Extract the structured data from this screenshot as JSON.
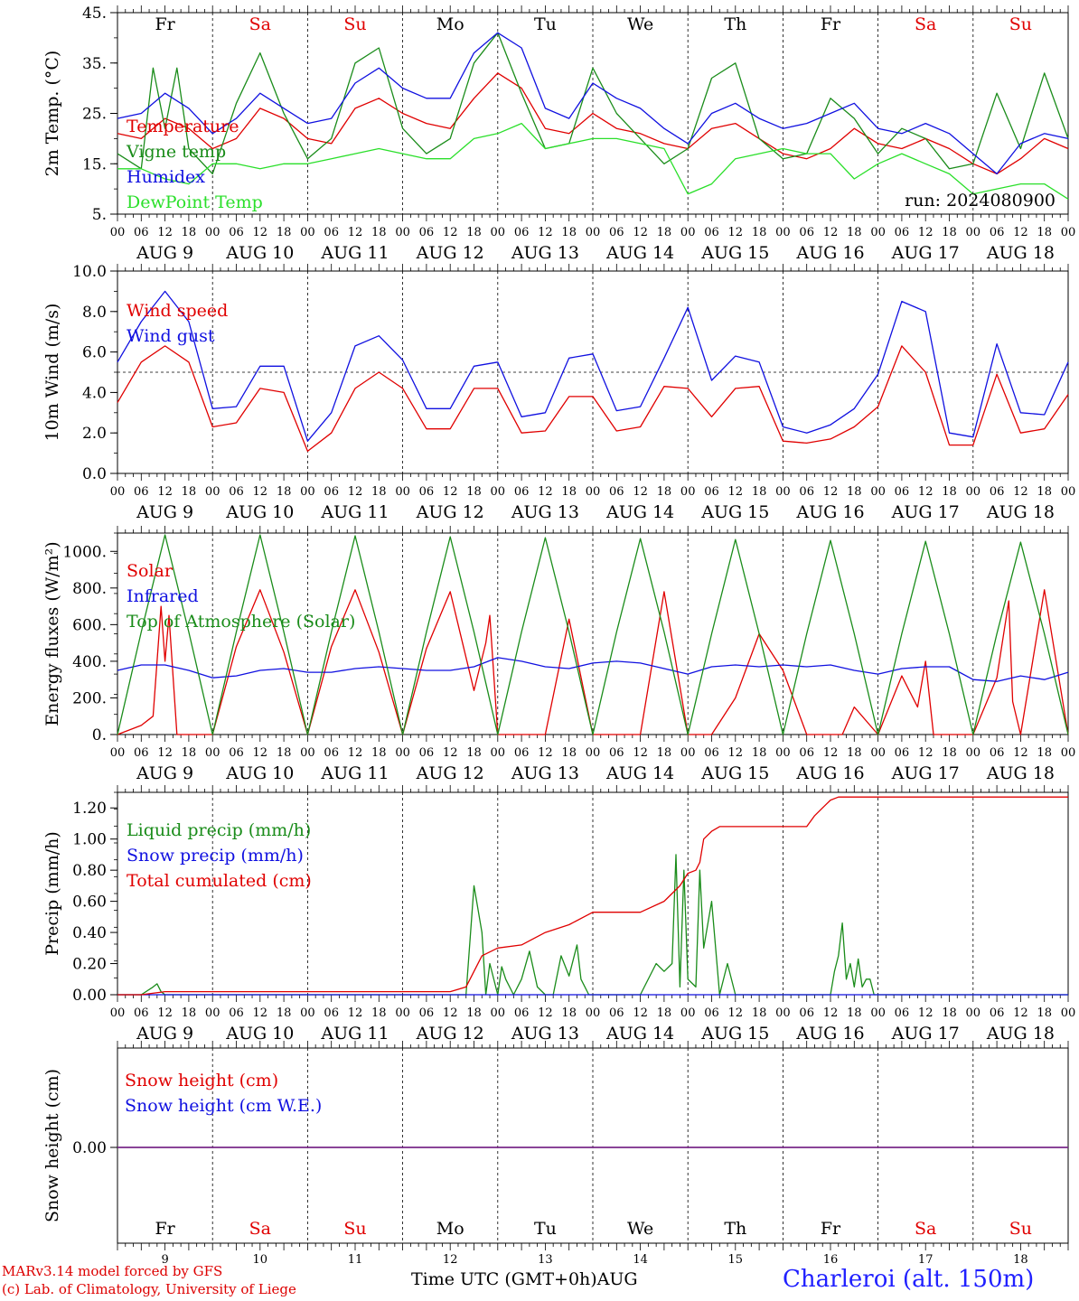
{
  "run_label": "run: 2024080900",
  "footer": {
    "model": "MARv3.14 model forced by GFS",
    "lab": "(c) Lab. of Climatology, University of Liege",
    "time_axis": "Time UTC (GMT+0h)AUG",
    "station": "Charleroi (alt. 150m)"
  },
  "day_names": [
    "Fr",
    "Sa",
    "Su",
    "Mo",
    "Tu",
    "We",
    "Th",
    "Fr",
    "Sa",
    "Su"
  ],
  "weekend_days": [
    1,
    2,
    8,
    9
  ],
  "date_labels": [
    "AUG  9",
    "AUG 10",
    "AUG 11",
    "AUG 12",
    "AUG 13",
    "AUG 14",
    "AUG 15",
    "AUG 16",
    "AUG 17",
    "AUG 18"
  ],
  "day_numbers": [
    "9",
    "10",
    "11",
    "12",
    "13",
    "14",
    "15",
    "16",
    "17",
    "18"
  ],
  "hour_ticks": [
    "00",
    "06",
    "12",
    "18"
  ],
  "colors": {
    "red": "#e00000",
    "green": "#1a8c1a",
    "blue": "#1010e0",
    "lightgreen": "#2adf2a",
    "purple": "#7a2a8a"
  },
  "chart_data": [
    {
      "type": "line",
      "ylabel": "2m Temp. (°C)",
      "ylim": [
        5,
        45
      ],
      "yticks": [
        "5.",
        "15.",
        "25.",
        "35.",
        "45."
      ],
      "x_unit": "hours since AUG 9 00 UTC",
      "series": [
        {
          "name": "Temperature",
          "color": "red",
          "x": [
            0,
            6,
            12,
            18,
            24,
            30,
            36,
            42,
            48,
            54,
            60,
            66,
            72,
            78,
            84,
            90,
            96,
            102,
            108,
            114,
            120,
            126,
            132,
            138,
            144,
            150,
            156,
            162,
            168,
            174,
            180,
            186,
            192,
            198,
            204,
            210,
            216,
            222,
            228,
            234,
            240
          ],
          "y": [
            21,
            20,
            24,
            22,
            18,
            20,
            26,
            24,
            20,
            19,
            26,
            28,
            25,
            23,
            22,
            28,
            33,
            30,
            22,
            21,
            25,
            22,
            21,
            19,
            18,
            22,
            23,
            20,
            17,
            16,
            18,
            22,
            19,
            18,
            20,
            18,
            15,
            13,
            16,
            20,
            18
          ]
        },
        {
          "name": "Vigne temp",
          "color": "green",
          "x": [
            0,
            6,
            9,
            12,
            15,
            18,
            24,
            30,
            36,
            42,
            48,
            54,
            60,
            66,
            72,
            78,
            84,
            90,
            96,
            102,
            108,
            114,
            120,
            126,
            132,
            138,
            144,
            150,
            156,
            162,
            168,
            174,
            180,
            186,
            192,
            198,
            204,
            210,
            216,
            222,
            228,
            234,
            240
          ],
          "y": [
            17,
            14,
            34,
            22,
            34,
            18,
            13,
            27,
            37,
            25,
            16,
            20,
            35,
            38,
            22,
            17,
            20,
            35,
            41,
            29,
            18,
            19,
            34,
            25,
            20,
            15,
            18,
            32,
            35,
            20,
            16,
            17,
            28,
            24,
            17,
            22,
            20,
            14,
            15,
            29,
            18,
            33,
            20
          ]
        },
        {
          "name": "Humidex",
          "color": "blue",
          "x": [
            0,
            6,
            12,
            18,
            24,
            30,
            36,
            42,
            48,
            54,
            60,
            66,
            72,
            78,
            84,
            90,
            96,
            102,
            108,
            114,
            120,
            126,
            132,
            138,
            144,
            150,
            156,
            162,
            168,
            174,
            180,
            186,
            192,
            198,
            204,
            210,
            216,
            222,
            228,
            234,
            240
          ],
          "y": [
            24,
            25,
            29,
            26,
            21,
            24,
            29,
            26,
            23,
            24,
            31,
            34,
            30,
            28,
            28,
            37,
            41,
            38,
            26,
            24,
            31,
            28,
            26,
            22,
            19,
            25,
            27,
            24,
            22,
            23,
            25,
            27,
            22,
            21,
            23,
            21,
            17,
            13,
            19,
            21,
            20
          ]
        },
        {
          "name": "DewPoint Temp",
          "color": "lightgreen",
          "x": [
            0,
            6,
            12,
            18,
            24,
            30,
            36,
            42,
            48,
            54,
            60,
            66,
            72,
            78,
            84,
            90,
            96,
            102,
            108,
            114,
            120,
            126,
            132,
            138,
            144,
            150,
            156,
            162,
            168,
            174,
            180,
            186,
            192,
            198,
            204,
            210,
            216,
            222,
            228,
            234,
            240
          ],
          "y": [
            14,
            14,
            12,
            11,
            15,
            15,
            14,
            15,
            15,
            16,
            17,
            18,
            17,
            16,
            16,
            20,
            21,
            23,
            18,
            19,
            20,
            20,
            19,
            18,
            9,
            11,
            16,
            17,
            18,
            17,
            17,
            12,
            15,
            17,
            15,
            13,
            9,
            10,
            11,
            11,
            8
          ]
        }
      ]
    },
    {
      "type": "line",
      "ylabel": "10m Wind (m/s)",
      "ylim": [
        0,
        10
      ],
      "yticks": [
        "0.0",
        "2.0",
        "4.0",
        "6.0",
        "8.0",
        "10.0"
      ],
      "reference_line": 5,
      "series": [
        {
          "name": "Wind speed",
          "color": "red",
          "x": [
            0,
            6,
            12,
            18,
            24,
            30,
            36,
            42,
            48,
            54,
            60,
            66,
            72,
            78,
            84,
            90,
            96,
            102,
            108,
            114,
            120,
            126,
            132,
            138,
            144,
            150,
            156,
            162,
            168,
            174,
            180,
            186,
            192,
            198,
            204,
            210,
            216,
            222,
            228,
            234,
            240
          ],
          "y": [
            3.5,
            5.5,
            6.3,
            5.5,
            2.3,
            2.5,
            4.2,
            4,
            1.1,
            2,
            4.2,
            5,
            4.2,
            2.2,
            2.2,
            4.2,
            4.2,
            2,
            2.1,
            3.8,
            3.8,
            2.1,
            2.3,
            4.3,
            4.2,
            2.8,
            4.2,
            4.3,
            1.6,
            1.5,
            1.7,
            2.3,
            3.3,
            6.3,
            5,
            1.4,
            1.4,
            4.9,
            2,
            2.2,
            3.9
          ]
        },
        {
          "name": "Wind gust",
          "color": "blue",
          "x": [
            0,
            6,
            12,
            18,
            24,
            30,
            36,
            42,
            48,
            54,
            60,
            66,
            72,
            78,
            84,
            90,
            96,
            102,
            108,
            114,
            120,
            126,
            132,
            138,
            144,
            150,
            156,
            162,
            168,
            174,
            180,
            186,
            192,
            198,
            204,
            210,
            216,
            222,
            228,
            234,
            240
          ],
          "y": [
            5.5,
            7.5,
            9,
            7.5,
            3.2,
            3.3,
            5.3,
            5.3,
            1.6,
            3,
            6.3,
            6.8,
            5.6,
            3.2,
            3.2,
            5.3,
            5.5,
            2.8,
            3,
            5.7,
            5.9,
            3.1,
            3.3,
            5.7,
            8.2,
            4.6,
            5.8,
            5.5,
            2.3,
            2,
            2.4,
            3.2,
            4.9,
            8.5,
            8,
            2,
            1.8,
            6.4,
            3,
            2.9,
            5.5
          ]
        }
      ]
    },
    {
      "type": "line",
      "ylabel": "Energy fluxes (W/m²)",
      "ylim": [
        0,
        1100
      ],
      "yticks": [
        "0.",
        "200.",
        "400.",
        "600.",
        "800.",
        "1000."
      ],
      "series": [
        {
          "name": "Solar",
          "color": "red",
          "x": [
            0,
            6,
            9,
            11,
            12,
            13,
            15,
            18,
            24,
            30,
            36,
            42,
            48,
            54,
            60,
            66,
            72,
            78,
            84,
            90,
            93,
            94,
            96,
            102,
            108,
            114,
            120,
            126,
            132,
            138,
            144,
            150,
            156,
            162,
            168,
            174,
            180,
            183,
            186,
            192,
            198,
            202,
            204,
            206,
            210,
            216,
            222,
            225,
            226,
            228,
            234,
            240
          ],
          "y": [
            0,
            50,
            100,
            700,
            400,
            650,
            0,
            0,
            0,
            480,
            790,
            450,
            0,
            480,
            790,
            450,
            0,
            470,
            780,
            240,
            500,
            650,
            0,
            0,
            0,
            630,
            0,
            0,
            0,
            780,
            0,
            0,
            200,
            550,
            350,
            0,
            0,
            0,
            150,
            0,
            320,
            150,
            400,
            0,
            0,
            0,
            310,
            730,
            180,
            0,
            790,
            0
          ]
        },
        {
          "name": "Infrared",
          "color": "blue",
          "x": [
            0,
            6,
            12,
            18,
            24,
            30,
            36,
            42,
            48,
            54,
            60,
            66,
            72,
            78,
            84,
            90,
            96,
            102,
            108,
            114,
            120,
            126,
            132,
            138,
            144,
            150,
            156,
            162,
            168,
            174,
            180,
            186,
            192,
            198,
            204,
            210,
            216,
            222,
            228,
            234,
            240
          ],
          "y": [
            350,
            380,
            380,
            350,
            310,
            320,
            350,
            360,
            340,
            340,
            360,
            370,
            360,
            350,
            350,
            370,
            420,
            400,
            370,
            360,
            390,
            400,
            390,
            360,
            330,
            370,
            380,
            370,
            380,
            370,
            380,
            350,
            330,
            360,
            370,
            370,
            300,
            290,
            320,
            300,
            340
          ]
        },
        {
          "name": "Top of Atmosphere (Solar)",
          "color": "green",
          "x": [
            0,
            6,
            12,
            18,
            24,
            30,
            36,
            42,
            48,
            54,
            60,
            66,
            72,
            78,
            84,
            90,
            96,
            102,
            108,
            114,
            120,
            126,
            132,
            138,
            144,
            150,
            156,
            162,
            168,
            174,
            180,
            186,
            192,
            198,
            204,
            210,
            216,
            222,
            228,
            234,
            240
          ],
          "y": [
            0,
            560,
            1090,
            560,
            0,
            560,
            1090,
            560,
            0,
            560,
            1085,
            560,
            0,
            560,
            1080,
            560,
            0,
            560,
            1075,
            560,
            0,
            560,
            1070,
            560,
            0,
            550,
            1065,
            550,
            0,
            550,
            1060,
            550,
            0,
            550,
            1055,
            550,
            0,
            550,
            1050,
            550,
            0
          ]
        }
      ]
    },
    {
      "type": "line",
      "ylabel": "Precip (mm/h)",
      "ylim": [
        0,
        1.3
      ],
      "yticks": [
        "0.00",
        "0.20",
        "0.40",
        "0.60",
        "0.80",
        "1.00",
        "1.20"
      ],
      "series": [
        {
          "name": "Liquid precip (mm/h)",
          "color": "green",
          "x": [
            0,
            6,
            9,
            10,
            11,
            12,
            84,
            88,
            90,
            91,
            92,
            93,
            94,
            96,
            97,
            98,
            100,
            102,
            104,
            106,
            108,
            110,
            112,
            114,
            116,
            117,
            119,
            120,
            122,
            132,
            136,
            138,
            140,
            141,
            142,
            143,
            144,
            146,
            147,
            148,
            150,
            152,
            154,
            156,
            180,
            181,
            182,
            183,
            184,
            185,
            186,
            187,
            188,
            189,
            190,
            191,
            192,
            240
          ],
          "y": [
            0,
            0,
            0.05,
            0.07,
            0.02,
            0,
            0,
            0,
            0.7,
            0.55,
            0.4,
            0,
            0.2,
            0,
            0.18,
            0.1,
            0,
            0.1,
            0.28,
            0.05,
            0,
            0,
            0.25,
            0.12,
            0.32,
            0.1,
            0,
            0,
            0,
            0,
            0.2,
            0.15,
            0.2,
            0.9,
            0.05,
            0.8,
            0.1,
            0.05,
            0.8,
            0.3,
            0.6,
            0,
            0.2,
            0,
            0,
            0.15,
            0.25,
            0.46,
            0.1,
            0.2,
            0.05,
            0.23,
            0.05,
            0.1,
            0.1,
            0,
            0,
            0
          ]
        },
        {
          "name": "Snow precip (mm/h)",
          "color": "blue",
          "x": [
            0,
            240
          ],
          "y": [
            0,
            0
          ]
        },
        {
          "name": "Total cumulated (cm)",
          "color": "red",
          "x": [
            0,
            6,
            12,
            84,
            88,
            92,
            96,
            102,
            108,
            114,
            120,
            132,
            138,
            142,
            144,
            146,
            147,
            148,
            150,
            152,
            156,
            162,
            168,
            174,
            176,
            178,
            180,
            182,
            240
          ],
          "y": [
            0,
            0,
            0.02,
            0.02,
            0.05,
            0.25,
            0.3,
            0.32,
            0.4,
            0.45,
            0.53,
            0.53,
            0.6,
            0.7,
            0.78,
            0.8,
            0.85,
            1.0,
            1.05,
            1.08,
            1.08,
            1.08,
            1.08,
            1.08,
            1.15,
            1.2,
            1.25,
            1.27,
            1.27
          ]
        }
      ]
    },
    {
      "type": "line",
      "ylabel": "Snow height (cm)",
      "yticks": [
        "0.00"
      ],
      "series": [
        {
          "name": "Snow height (cm)",
          "color": "red",
          "x": [
            0,
            240
          ],
          "y": [
            0,
            0
          ]
        },
        {
          "name": "Snow height (cm W.E.)",
          "color": "blue",
          "x": [
            0,
            240
          ],
          "y": [
            0,
            0
          ]
        }
      ]
    }
  ]
}
